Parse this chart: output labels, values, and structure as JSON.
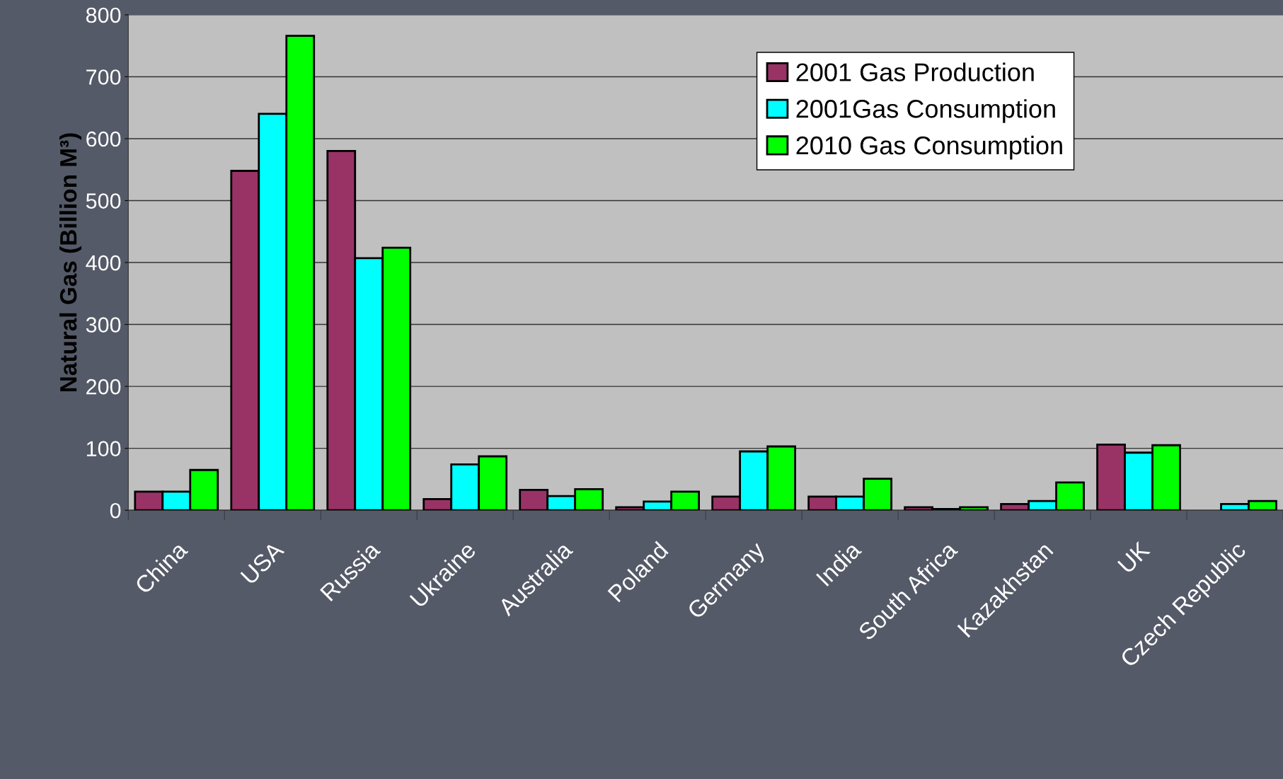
{
  "chart_data": {
    "type": "bar",
    "ylabel": "Natural Gas (Billion M³)",
    "categories": [
      "China",
      "USA",
      "Russia",
      "Ukraine",
      "Australia",
      "Poland",
      "Germany",
      "India",
      "South Africa",
      "Kazakhstan",
      "UK",
      "Czech Republic"
    ],
    "series": [
      {
        "name": "2001 Gas Production",
        "color": "#993366",
        "values": [
          30,
          548,
          580,
          18,
          33,
          5,
          22,
          22,
          5,
          10,
          106,
          null
        ]
      },
      {
        "name": "2001Gas Consumption",
        "color": "#00ffff",
        "values": [
          30,
          640,
          407,
          74,
          23,
          14,
          95,
          22,
          2,
          15,
          93,
          10
        ]
      },
      {
        "name": "2010 Gas Consumption",
        "color": "#00ff00",
        "values": [
          65,
          766,
          424,
          87,
          34,
          30,
          103,
          51,
          5,
          45,
          105,
          15
        ]
      }
    ],
    "ylim": [
      0,
      800
    ],
    "yticks": [
      0,
      100,
      200,
      300,
      400,
      500,
      600,
      700,
      800
    ],
    "grid": "y",
    "legend": "top right"
  }
}
